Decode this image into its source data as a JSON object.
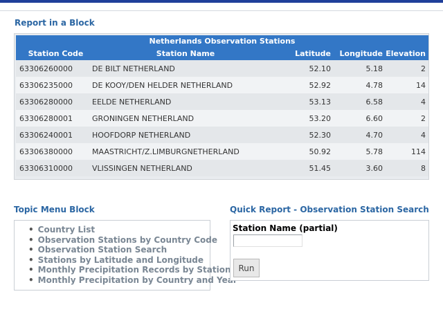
{
  "report_block": {
    "title": "Report in a Block",
    "table": {
      "caption": "Netherlands Observation Stations",
      "headers": [
        "Station Code",
        "Station Name",
        "Latitude",
        "Longitude",
        "Elevation"
      ],
      "rows": [
        [
          "63306260000",
          "DE BILT NETHERLAND",
          "52.10",
          "5.18",
          "2"
        ],
        [
          "63306235000",
          "DE KOOY/DEN HELDER NETHERLAND",
          "52.92",
          "4.78",
          "14"
        ],
        [
          "63306280000",
          "EELDE NETHERLAND",
          "53.13",
          "6.58",
          "4"
        ],
        [
          "63306280001",
          "GRONINGEN NETHERLAND",
          "53.20",
          "6.60",
          "2"
        ],
        [
          "63306240001",
          "HOOFDORP NETHERLAND",
          "52.30",
          "4.70",
          "4"
        ],
        [
          "63306380000",
          "MAASTRICHT/Z.LIMBURGNETHERLAND",
          "50.92",
          "5.78",
          "114"
        ],
        [
          "63306310000",
          "VLISSINGEN NETHERLAND",
          "51.45",
          "3.60",
          "8"
        ]
      ]
    }
  },
  "topic_menu": {
    "title": "Topic Menu Block",
    "items": [
      "Country List",
      "Observation Stations by Country Code",
      "Observation Station Search",
      "Stations by Latitude and Longitude",
      "Monthly Precipitation Records by Station",
      "Monthly Precipitation by Country and Year"
    ]
  },
  "quick_report": {
    "title": "Quick Report - Observation Station Search",
    "field_label": "Station Name (partial)",
    "field_value": "",
    "run_label": "Run"
  },
  "colors": {
    "accent": "#2b66a3",
    "table_header": "#3377c6",
    "menu_link": "#7a8794"
  }
}
